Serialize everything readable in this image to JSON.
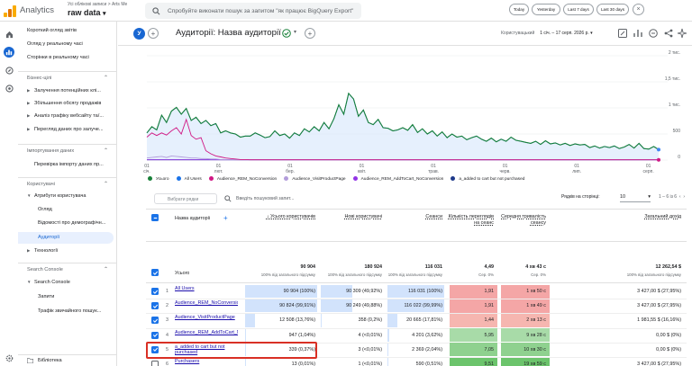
{
  "topbar": {
    "app_name": "Analytics",
    "account_breadcrumb": "Усі облікові записи > Arts Me",
    "property": "raw data",
    "search_placeholder": "Спробуйте виконати пошук за запитом \"як працює BigQuery Export\"",
    "date_buttons": [
      "Today",
      "Yesterday",
      "Last 7 days",
      "Last 30 days"
    ],
    "close_label": "×"
  },
  "sidebar": {
    "top_items": [
      "Короткий огляд звітів",
      "Огляд у реальному часі",
      "Сторінки в реальному часі"
    ],
    "sections": [
      {
        "title": "Бізнес-цілі",
        "items": [
          "Залучення потенційних клі...",
          "Збільшення обсягу продажів",
          "Аналіз трафіку вебсайту та/...",
          "Перегляд даних про залуче..."
        ]
      },
      {
        "title": "Імпортування даних",
        "items": [
          "Перевірка імпорту даних пр..."
        ]
      },
      {
        "title": "Користувачі",
        "items": [
          "Атрибути користувача",
          "Огляд",
          "Відомості про демографічн...",
          "Аудиторії",
          "Технології"
        ]
      },
      {
        "title": "Search Console",
        "items": [
          "Search Console",
          "Запити",
          "Трафік звичайного пошук..."
        ]
      }
    ],
    "library": "Бібліотека"
  },
  "header": {
    "user_chip": "У",
    "title": "Аудиторії: Назва аудиторії",
    "daterange_label": "Користувацький",
    "daterange_value": "1 січ. – 17 серп. 2026 р."
  },
  "chart_data": {
    "type": "line",
    "ylabel": "",
    "y_ticks": [
      "2 тис.",
      "1,5 тис.",
      "1 тис.",
      "500",
      "0"
    ],
    "ylim": [
      0,
      2000
    ],
    "x_ticks": [
      "01 січ.",
      "01 лют.",
      "01 бер.",
      "01 квіт.",
      "01 трав.",
      "01 черв.",
      "01 лип.",
      "01 серп."
    ],
    "x_ticks_parts": [
      [
        "01",
        "січ."
      ],
      [
        "01",
        "лют."
      ],
      [
        "01",
        "бер."
      ],
      [
        "01",
        "квіт."
      ],
      [
        "01",
        "трав."
      ],
      [
        "01",
        "черв."
      ],
      [
        "01",
        "лип."
      ],
      [
        "01",
        "серп."
      ]
    ],
    "series": [
      {
        "name": "Усього",
        "color": "#188038",
        "values": [
          520,
          640,
          580,
          860,
          720,
          940,
          1010,
          880,
          990,
          760,
          820,
          700,
          760,
          660,
          700,
          520,
          560,
          520,
          500,
          440,
          460,
          460,
          520,
          480,
          430,
          450,
          560,
          470,
          500,
          420,
          520,
          470,
          600,
          540,
          640,
          560,
          720,
          600,
          790,
          1060,
          880,
          1280,
          1170,
          840,
          960,
          720,
          680,
          780,
          620,
          610,
          560,
          580,
          620,
          570,
          680,
          530,
          600,
          500,
          560,
          460,
          540,
          430,
          500,
          440,
          460,
          390,
          430,
          460,
          400,
          360,
          420,
          350,
          400,
          360,
          440,
          380,
          360,
          340,
          320,
          360,
          300,
          370,
          310,
          330,
          290,
          320,
          280,
          310,
          290,
          300,
          240,
          270,
          230,
          260,
          240,
          270,
          220,
          250,
          300,
          230,
          320,
          220,
          210,
          260,
          200
        ]
      },
      {
        "name": "All Users",
        "color": "#1a73e8",
        "values": [
          520,
          640,
          580,
          860,
          720,
          940,
          1010,
          880,
          990,
          760,
          820,
          700,
          760,
          660,
          700,
          520,
          560,
          520,
          500,
          440,
          460,
          460,
          520,
          480,
          430,
          450,
          560,
          470,
          500,
          420,
          520,
          470,
          600,
          540,
          640,
          560,
          720,
          600,
          790,
          1060,
          880,
          1280,
          1170,
          840,
          960,
          720,
          680,
          780,
          620,
          610,
          560,
          580,
          620,
          570,
          680,
          530,
          600,
          500,
          560,
          460,
          540,
          430,
          500,
          440,
          460,
          390,
          430,
          460,
          400,
          360,
          420,
          350,
          400,
          360,
          440,
          380,
          360,
          340,
          320,
          360,
          300,
          370,
          310,
          330,
          290,
          320,
          280,
          310,
          290,
          300,
          240,
          270,
          230,
          260,
          240,
          270,
          220,
          250,
          300,
          230,
          320,
          220,
          210,
          260,
          200
        ]
      },
      {
        "name": "Audience_REM_NoConversion",
        "color": "#d01884",
        "values": [
          440,
          520,
          470,
          520,
          480,
          560,
          620,
          500,
          780,
          470,
          400,
          430,
          180,
          120,
          80,
          60,
          40,
          30,
          20,
          10,
          10,
          5,
          5,
          5,
          5,
          5,
          5,
          5,
          5,
          5,
          5,
          5,
          5,
          5,
          5,
          5,
          5,
          5,
          5,
          5,
          5,
          5,
          5,
          5,
          5,
          5,
          5,
          5,
          5,
          5,
          5,
          5,
          5,
          5,
          5,
          5,
          5,
          5,
          5,
          5,
          5,
          5,
          5,
          5,
          5,
          5,
          5,
          5,
          5,
          5,
          5,
          5,
          5,
          5,
          5,
          5,
          5,
          5,
          5,
          5,
          5,
          5,
          5,
          5,
          5,
          5,
          5,
          5,
          5,
          5,
          5,
          5,
          5,
          5,
          5,
          5,
          5,
          5,
          5,
          5,
          5,
          5,
          5,
          5,
          5
        ]
      },
      {
        "name": "Audience_VisitProductPage",
        "color": "#b39ddb",
        "values": [
          40,
          50,
          60,
          70,
          50,
          80,
          70,
          60,
          50,
          40,
          40,
          30,
          30,
          20,
          20,
          10,
          10,
          10,
          5,
          5,
          5,
          5,
          5,
          5,
          5,
          5,
          5,
          5,
          5,
          5,
          5,
          5,
          5,
          5,
          5,
          5,
          5,
          5,
          5,
          5,
          5,
          5,
          5,
          5,
          5,
          5,
          5,
          5,
          5,
          5,
          5,
          5,
          5,
          5,
          5,
          5,
          5,
          5,
          5,
          5,
          5,
          5,
          5,
          5,
          5,
          5,
          5,
          5,
          5,
          5,
          5,
          5,
          5,
          5,
          5,
          5,
          5,
          5,
          5,
          5,
          5,
          5,
          5,
          5,
          5,
          5,
          5,
          5,
          5,
          5,
          5,
          5,
          5,
          5,
          5,
          5,
          5,
          5,
          5,
          5,
          5,
          5,
          5,
          5,
          5
        ]
      },
      {
        "name": "Audience_REM_AddToCart_NoConversion",
        "color": "#9334e6",
        "values": [
          5,
          5,
          5,
          5,
          5,
          5,
          5,
          5,
          5,
          5,
          5,
          5,
          5,
          5,
          5,
          5,
          5,
          5,
          5,
          5,
          5,
          5,
          5,
          5,
          5,
          5,
          5,
          5,
          5,
          5,
          5,
          5,
          5,
          5,
          5,
          5,
          5,
          5,
          5,
          5,
          5,
          5,
          5,
          5,
          5,
          5,
          5,
          5,
          5,
          5,
          5,
          5,
          5,
          5,
          5,
          5,
          5,
          5,
          5,
          5,
          5,
          5,
          5,
          5,
          5,
          5,
          5,
          5,
          5,
          5,
          5,
          5,
          5,
          5,
          5,
          5,
          5,
          5,
          5,
          5,
          5,
          5,
          5,
          5,
          5,
          5,
          5,
          5,
          5,
          5,
          5,
          5,
          5,
          5,
          5,
          5,
          5,
          5,
          5,
          5,
          5,
          5,
          5,
          5,
          5
        ]
      },
      {
        "name": "a_added to cart but not purchased",
        "color": "#1e3a8a",
        "values": [
          5,
          5,
          5,
          5,
          5,
          5,
          5,
          5,
          5,
          5,
          5,
          5,
          5,
          5,
          5,
          5,
          5,
          5,
          5,
          5,
          5,
          5,
          5,
          5,
          5,
          5,
          5,
          5,
          5,
          5,
          5,
          5,
          5,
          5,
          5,
          5,
          5,
          5,
          5,
          5,
          5,
          5,
          5,
          5,
          5,
          5,
          5,
          5,
          5,
          5,
          5,
          5,
          5,
          5,
          5,
          5,
          5,
          5,
          5,
          5,
          5,
          5,
          5,
          5,
          5,
          5,
          5,
          5,
          5,
          5,
          5,
          5,
          5,
          5,
          5,
          5,
          5,
          5,
          5,
          5,
          5,
          5,
          5,
          5,
          5,
          5,
          5,
          5,
          5,
          5,
          5,
          5,
          5,
          5,
          5,
          5,
          5,
          5,
          5,
          5,
          5,
          5,
          5,
          5,
          5
        ]
      }
    ]
  },
  "table_toolbar": {
    "rows_placeholder": "Вибрати рядки",
    "search_placeholder": "Введіть пошуковий запит...",
    "rows_per_page_label": "Рядків на сторінці:",
    "rows_per_page_value": "10",
    "pager": "1 – 6 із 6"
  },
  "table": {
    "dimension_header": "Назва аудиторії",
    "columns": [
      {
        "label": "↓ Усього користувачів",
        "total": "90 904",
        "sub": "100% від загального підсумку"
      },
      {
        "label": "Нові користувачі",
        "total": "180 924",
        "sub": "100% від загального підсумку"
      },
      {
        "label": "Сеанси",
        "total": "116 031",
        "sub": "100% від загального підсумку"
      },
      {
        "label": "Кількість переглядів на сеанс",
        "total": "4,49",
        "sub": "Сер. 0%"
      },
      {
        "label": "Середня тривалість сеансу",
        "total": "4 хв 43 с",
        "sub": "Сер. 0%"
      },
      {
        "label": "Загальний дохід",
        "total": "12 262,54 $",
        "sub": "100% від загального підсумку"
      }
    ],
    "total_label": "Усього",
    "rows": [
      {
        "n": "1",
        "name": "All Users",
        "c": [
          "90 904 (100%)",
          "90 309 (49,92%)",
          "116 031 (100%)",
          "1,91",
          "1 хв 50 с",
          "3 427,00 $ (27,95%)"
        ]
      },
      {
        "n": "2",
        "name": "Audience_REM_NoConversion",
        "c": [
          "90 824 (99,91%)",
          "90 249 (49,88%)",
          "116 022 (99,99%)",
          "1,91",
          "1 хв 49 с",
          "3 427,00 $ (27,95%)"
        ]
      },
      {
        "n": "3",
        "name": "Audience_VisitProductPage",
        "c": [
          "12 508 (13,76%)",
          "358 (0,2%)",
          "20 665 (17,81%)",
          "1,44",
          "2 хв 13 с",
          "1 981,55 $ (16,16%)"
        ]
      },
      {
        "n": "4",
        "name": "Audience_REM_AddToCart_NoConversion",
        "c": [
          "947 (1,04%)",
          "4 (<0,01%)",
          "4 201 (3,62%)",
          "5,95",
          "9 хв 28 с",
          "0,00 $ (0%)"
        ]
      },
      {
        "n": "5",
        "name": "a_added to cart but not purchased",
        "c": [
          "339 (0,37%)",
          "3 (<0,01%)",
          "2 369 (2,04%)",
          "7,05",
          "10 хв 30 с",
          "0,00 $ (0%)"
        ]
      },
      {
        "n": "6",
        "name": "Purchasers",
        "c": [
          "13 (0,01%)",
          "1 (<0,01%)",
          "590 (0,51%)",
          "9,51",
          "19 хв 59 с",
          "3 427,00 $ (27,95%)"
        ]
      }
    ],
    "bar_fractions": [
      [
        1,
        0.4992,
        1
      ],
      [
        0.9991,
        0.4988,
        0.9999
      ],
      [
        0.1376,
        0.002,
        0.1781
      ],
      [
        0.0104,
        0,
        0.0362
      ],
      [
        0.0037,
        0,
        0.0204
      ],
      [
        0.0001,
        0,
        0.0051
      ]
    ],
    "heat_pages": [
      "#f4a6a6",
      "#f4a6a6",
      "#f6b6b0",
      "#a8dba8",
      "#8fd18f",
      "#6cc46c"
    ],
    "heat_duration": [
      "#f4a6a6",
      "#f4a6a6",
      "#f6b6b0",
      "#a8dba8",
      "#8fd18f",
      "#6cc46c"
    ]
  }
}
